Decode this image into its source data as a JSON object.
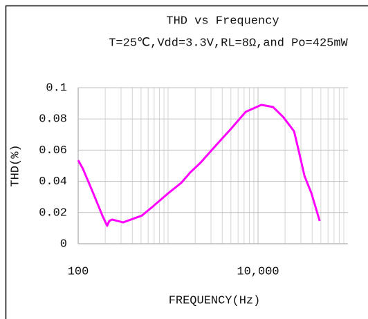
{
  "chart_data": {
    "type": "line",
    "title": "THD vs Frequency",
    "subtitle": "T=25℃,Vdd=3.3V,RL=8Ω,and Po=425mW",
    "x_label": "FREQUENCY(Hz)",
    "y_label": "THD(%)",
    "x_log": true,
    "grid": true,
    "xlim": [
      100,
      100000
    ],
    "xticks": [
      100,
      {
        "value": 10000,
        "label": "10,000"
      }
    ],
    "xgrid_minor": [
      200,
      300,
      400,
      500,
      600,
      700,
      800,
      900,
      1000,
      2000,
      3000,
      4000,
      5000,
      6000,
      7000,
      8000,
      9000,
      10000,
      20000,
      30000,
      40000,
      50000,
      60000,
      70000,
      80000,
      90000
    ],
    "ylim": [
      0,
      0.1
    ],
    "yticks": [
      0,
      0.02,
      0.04,
      0.06,
      0.08,
      0.1
    ],
    "series": [
      {
        "name": "THD",
        "color": "#ff00ff",
        "x": [
          100,
          113,
          148,
          186,
          210,
          222,
          238,
          316,
          510,
          665,
          1036,
          1400,
          1757,
          2300,
          3280,
          5120,
          7290,
          10900,
          14700,
          19200,
          25200,
          28500,
          32900,
          39300,
          48500
        ],
        "values": [
          0.0535,
          0.048,
          0.032,
          0.018,
          0.0115,
          0.0146,
          0.0155,
          0.0137,
          0.018,
          0.0235,
          0.033,
          0.039,
          0.0456,
          0.052,
          0.062,
          0.0743,
          0.0845,
          0.089,
          0.0876,
          0.081,
          0.072,
          0.059,
          0.0434,
          0.0323,
          0.0146
        ]
      }
    ]
  }
}
